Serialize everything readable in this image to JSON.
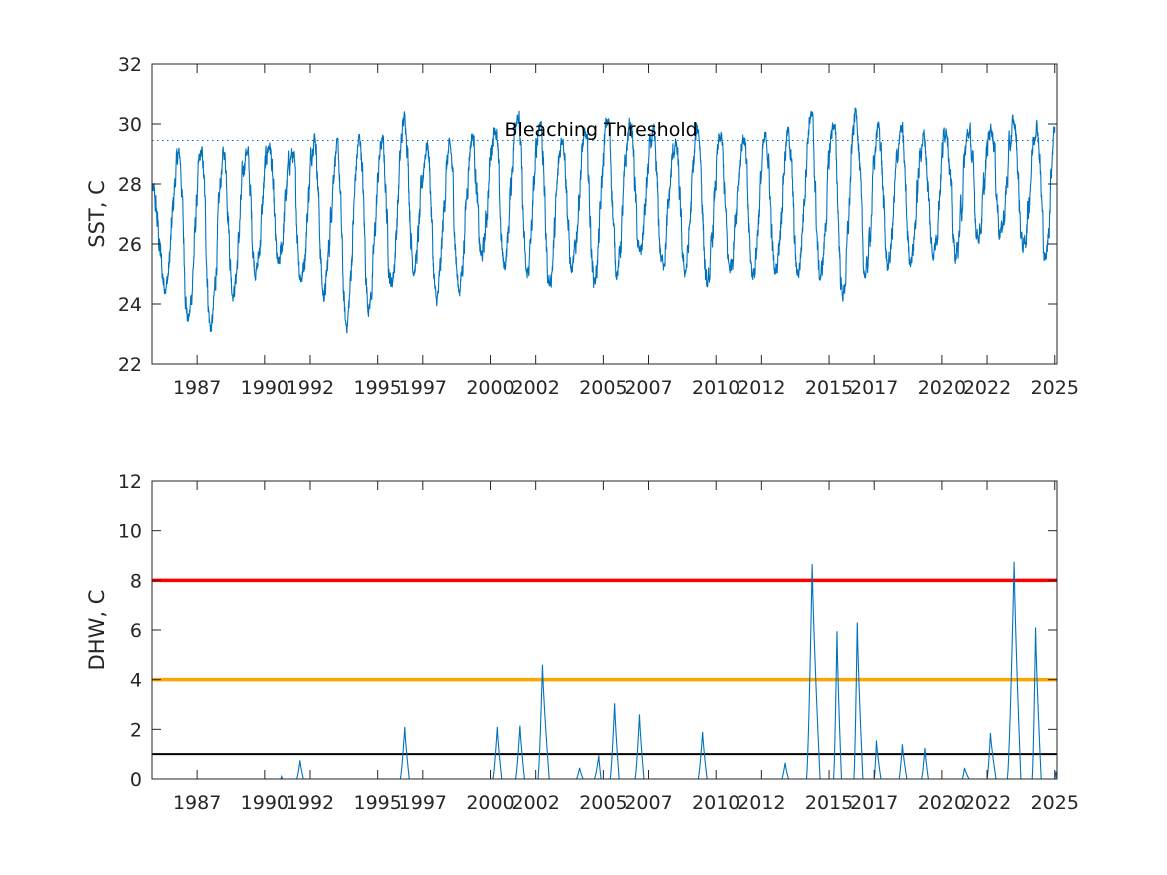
{
  "chart_data": [
    {
      "type": "line",
      "title": "",
      "xlabel": "",
      "ylabel": "SST, C",
      "xlim": [
        1985.0,
        2025.1
      ],
      "ylim": [
        22,
        32
      ],
      "xticks": [
        1987,
        1990,
        1992,
        1995,
        1997,
        2000,
        2002,
        2005,
        2007,
        2010,
        2012,
        2015,
        2017,
        2020,
        2022,
        2025
      ],
      "xtick_labels": [
        "1987",
        "1990",
        "1992",
        "1995",
        "1997",
        "2000",
        "2002",
        "2005",
        "2007",
        "2010",
        "2012",
        "2015",
        "2017",
        "2020",
        "2022",
        "2025"
      ],
      "yticks": [
        22,
        24,
        26,
        28,
        30,
        32
      ],
      "ytick_labels": [
        "22",
        "24",
        "26",
        "28",
        "30",
        "32"
      ],
      "grid": false,
      "series": [
        {
          "color": "#0072BD",
          "seasonal_peaks": [
            [
              1985.0,
              27.8
            ],
            [
              1985.6,
              24.6
            ],
            [
              1986.2,
              29.0
            ],
            [
              1986.6,
              23.5
            ],
            [
              1987.2,
              29.0
            ],
            [
              1987.6,
              23.2
            ],
            [
              1988.2,
              29.0
            ],
            [
              1988.6,
              24.4
            ],
            [
              1989.2,
              29.1
            ],
            [
              1989.6,
              25.1
            ],
            [
              1990.2,
              29.3
            ],
            [
              1990.6,
              25.3
            ],
            [
              1991.2,
              29.0
            ],
            [
              1991.6,
              24.9
            ],
            [
              1992.2,
              29.6
            ],
            [
              1992.6,
              24.3
            ],
            [
              1993.2,
              29.2
            ],
            [
              1993.6,
              23.3
            ],
            [
              1994.2,
              29.5
            ],
            [
              1994.6,
              23.9
            ],
            [
              1995.2,
              29.4
            ],
            [
              1995.6,
              24.7
            ],
            [
              1996.2,
              30.2
            ],
            [
              1996.6,
              25.2
            ],
            [
              1997.2,
              29.3
            ],
            [
              1997.6,
              24.1
            ],
            [
              1998.2,
              29.2
            ],
            [
              1998.6,
              24.5
            ],
            [
              1999.2,
              29.6
            ],
            [
              1999.6,
              25.6
            ],
            [
              2000.2,
              29.9
            ],
            [
              2000.6,
              25.3
            ],
            [
              2001.2,
              30.4
            ],
            [
              2001.6,
              25.0
            ],
            [
              2002.2,
              30.1
            ],
            [
              2002.6,
              24.7
            ],
            [
              2003.2,
              29.6
            ],
            [
              2003.6,
              25.1
            ],
            [
              2004.2,
              29.6
            ],
            [
              2004.6,
              24.8
            ],
            [
              2005.2,
              30.1
            ],
            [
              2005.6,
              25.1
            ],
            [
              2006.2,
              30.0
            ],
            [
              2006.6,
              25.7
            ],
            [
              2007.2,
              29.6
            ],
            [
              2007.6,
              25.4
            ],
            [
              2008.2,
              29.3
            ],
            [
              2008.6,
              25.1
            ],
            [
              2009.2,
              29.8
            ],
            [
              2009.6,
              24.6
            ],
            [
              2010.2,
              29.5
            ],
            [
              2010.6,
              25.2
            ],
            [
              2011.2,
              29.5
            ],
            [
              2011.6,
              25.0
            ],
            [
              2012.2,
              29.5
            ],
            [
              2012.6,
              25.1
            ],
            [
              2013.2,
              29.7
            ],
            [
              2013.6,
              25.0
            ],
            [
              2014.2,
              30.3
            ],
            [
              2014.6,
              24.9
            ],
            [
              2015.2,
              30.0
            ],
            [
              2015.6,
              24.3
            ],
            [
              2016.2,
              30.4
            ],
            [
              2016.6,
              25.0
            ],
            [
              2017.2,
              29.9
            ],
            [
              2017.6,
              25.3
            ],
            [
              2018.2,
              29.8
            ],
            [
              2018.6,
              25.5
            ],
            [
              2019.2,
              29.6
            ],
            [
              2019.6,
              25.7
            ],
            [
              2020.2,
              29.9
            ],
            [
              2020.6,
              25.6
            ],
            [
              2021.2,
              29.7
            ],
            [
              2021.6,
              26.3
            ],
            [
              2022.2,
              29.9
            ],
            [
              2022.6,
              26.4
            ],
            [
              2023.2,
              30.0
            ],
            [
              2023.6,
              25.9
            ],
            [
              2024.2,
              30.0
            ],
            [
              2024.6,
              25.5
            ],
            [
              2025.0,
              29.9
            ]
          ]
        }
      ],
      "reference_lines": [
        {
          "y": 29.45,
          "style": "dotted",
          "color": "#0072BD"
        }
      ],
      "annotations": [
        {
          "text": "Bleaching Threshold",
          "x": 2004.9,
          "y": 29.9
        }
      ]
    },
    {
      "type": "line",
      "title": "",
      "xlabel": "",
      "ylabel": "DHW, C",
      "xlim": [
        1985.0,
        2025.1
      ],
      "ylim": [
        0,
        12
      ],
      "xticks": [
        1987,
        1990,
        1992,
        1995,
        1997,
        2000,
        2002,
        2005,
        2007,
        2010,
        2012,
        2015,
        2017,
        2020,
        2022,
        2025
      ],
      "xtick_labels": [
        "1987",
        "1990",
        "1992",
        "1995",
        "1997",
        "2000",
        "2002",
        "2005",
        "2007",
        "2010",
        "2012",
        "2015",
        "2017",
        "2020",
        "2022",
        "2025"
      ],
      "yticks": [
        0,
        2,
        4,
        6,
        8,
        10,
        12
      ],
      "ytick_labels": [
        "0",
        "2",
        "4",
        "6",
        "8",
        "10",
        "12"
      ],
      "grid": false,
      "series": [
        {
          "color": "#0072BD",
          "events": [
            {
              "start": 1990.7,
              "peak": 1990.75,
              "end": 1990.8,
              "max": 0.1
            },
            {
              "start": 1991.4,
              "peak": 1991.55,
              "end": 1991.7,
              "max": 0.75
            },
            {
              "start": 1996.0,
              "peak": 1996.2,
              "end": 1996.4,
              "max": 2.1
            },
            {
              "start": 2000.1,
              "peak": 2000.3,
              "end": 2000.5,
              "max": 2.1
            },
            {
              "start": 2001.1,
              "peak": 2001.3,
              "end": 2001.5,
              "max": 2.15
            },
            {
              "start": 2002.1,
              "peak": 2002.3,
              "end": 2002.6,
              "max": 4.6
            },
            {
              "start": 2003.8,
              "peak": 2003.95,
              "end": 2004.1,
              "max": 0.45
            },
            {
              "start": 2004.6,
              "peak": 2004.8,
              "end": 2004.9,
              "max": 0.95
            },
            {
              "start": 2005.3,
              "peak": 2005.5,
              "end": 2005.7,
              "max": 3.05
            },
            {
              "start": 2006.4,
              "peak": 2006.6,
              "end": 2006.8,
              "max": 2.6
            },
            {
              "start": 2009.2,
              "peak": 2009.4,
              "end": 2009.6,
              "max": 1.9
            },
            {
              "start": 2012.9,
              "peak": 2013.05,
              "end": 2013.2,
              "max": 0.65
            },
            {
              "start": 2014.0,
              "peak": 2014.25,
              "end": 2014.6,
              "max": 8.65
            },
            {
              "start": 2015.2,
              "peak": 2015.35,
              "end": 2015.55,
              "max": 5.95
            },
            {
              "start": 2016.1,
              "peak": 2016.25,
              "end": 2016.5,
              "max": 6.3
            },
            {
              "start": 2017.0,
              "peak": 2017.1,
              "end": 2017.3,
              "max": 1.55
            },
            {
              "start": 2018.1,
              "peak": 2018.25,
              "end": 2018.45,
              "max": 1.4
            },
            {
              "start": 2019.1,
              "peak": 2019.25,
              "end": 2019.4,
              "max": 1.25
            },
            {
              "start": 2020.9,
              "peak": 2021.0,
              "end": 2021.2,
              "max": 0.45
            },
            {
              "start": 2022.0,
              "peak": 2022.15,
              "end": 2022.4,
              "max": 1.85
            },
            {
              "start": 2022.9,
              "peak": 2023.2,
              "end": 2023.5,
              "max": 8.75
            },
            {
              "start": 2024.0,
              "peak": 2024.15,
              "end": 2024.4,
              "max": 6.1
            },
            {
              "start": 2025.0,
              "peak": 2025.05,
              "end": 2025.1,
              "max": 0.3
            }
          ]
        }
      ],
      "reference_lines": [
        {
          "y": 8,
          "color": "#FF0000",
          "style": "solid"
        },
        {
          "y": 4,
          "color": "#FFA500",
          "style": "solid"
        },
        {
          "y": 1,
          "color": "#000000",
          "style": "solid"
        }
      ]
    }
  ]
}
